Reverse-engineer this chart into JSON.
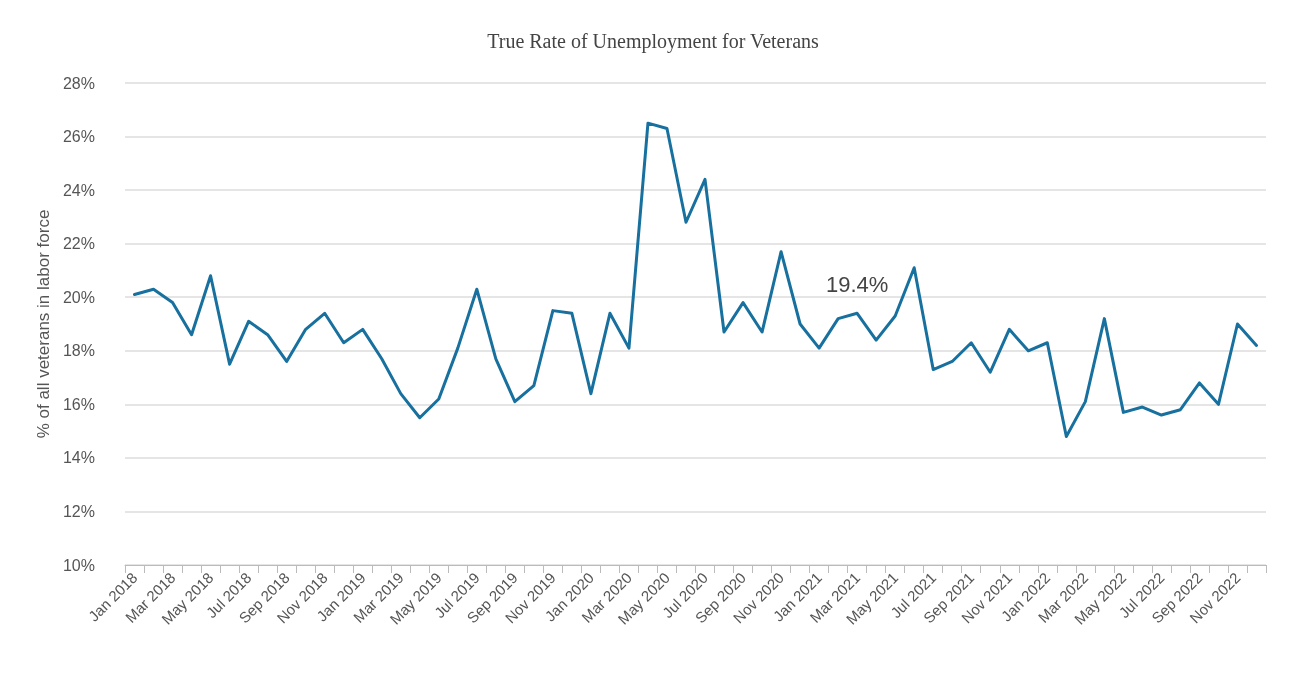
{
  "chart_data": {
    "type": "line",
    "title": "True Rate of Unemployment for Veterans",
    "ylabel": "% of all veterans in labor force",
    "categories": [
      "Jan 2018",
      null,
      "Mar 2018",
      null,
      "May 2018",
      null,
      "Jul 2018",
      null,
      "Sep 2018",
      null,
      "Nov 2018",
      null,
      "Jan 2019",
      null,
      "Mar 2019",
      null,
      "May 2019",
      null,
      "Jul 2019",
      null,
      "Sep 2019",
      null,
      "Nov 2019",
      null,
      "Jan 2020",
      null,
      "Mar 2020",
      null,
      "May 2020",
      null,
      "Jul 2020",
      null,
      "Sep 2020",
      null,
      "Nov 2020",
      null,
      "Jan 2021",
      null,
      "Mar 2021",
      null,
      "May 2021",
      null,
      "Jul 2021",
      null,
      "Sep 2021",
      null,
      "Nov 2021",
      null,
      "Jan 2022",
      null,
      "Mar 2022",
      null,
      "May 2022",
      null,
      "Jul 2022",
      null,
      "Sep 2022",
      null,
      "Nov 2022",
      null
    ],
    "series": [
      {
        "color": "#17709e",
        "values": [
          20.1,
          20.3,
          19.8,
          18.6,
          20.8,
          17.5,
          19.1,
          18.6,
          17.6,
          18.8,
          19.4,
          18.3,
          18.8,
          17.7,
          16.4,
          15.5,
          16.2,
          18.1,
          20.3,
          17.7,
          16.1,
          16.7,
          19.5,
          19.4,
          16.4,
          19.4,
          18.1,
          26.5,
          26.3,
          22.8,
          24.4,
          18.7,
          19.8,
          18.7,
          21.7,
          19.0,
          18.1,
          19.2,
          19.4,
          18.4,
          19.3,
          21.1,
          17.3,
          17.6,
          18.3,
          17.2,
          18.8,
          18.0,
          18.3,
          14.8,
          16.1,
          19.2,
          15.7,
          15.9,
          15.6,
          15.8,
          16.8,
          16.0,
          19.0,
          18.2
        ]
      }
    ],
    "ylim": [
      10,
      28
    ],
    "yticks": [
      {
        "value": 10,
        "label": "10%"
      },
      {
        "value": 12,
        "label": "12%"
      },
      {
        "value": 14,
        "label": "14%"
      },
      {
        "value": 16,
        "label": "16%"
      },
      {
        "value": 18,
        "label": "18%"
      },
      {
        "value": 20,
        "label": "20%"
      },
      {
        "value": 22,
        "label": "22%"
      },
      {
        "value": 24,
        "label": "24%"
      },
      {
        "value": 26,
        "label": "26%"
      },
      {
        "value": 28,
        "label": "28%"
      }
    ],
    "annotations": [
      {
        "text": "19.4%",
        "x": "Mar 2021",
        "y": 19.4
      }
    ],
    "grid": "y",
    "marker": "none",
    "line_style": "solid"
  }
}
